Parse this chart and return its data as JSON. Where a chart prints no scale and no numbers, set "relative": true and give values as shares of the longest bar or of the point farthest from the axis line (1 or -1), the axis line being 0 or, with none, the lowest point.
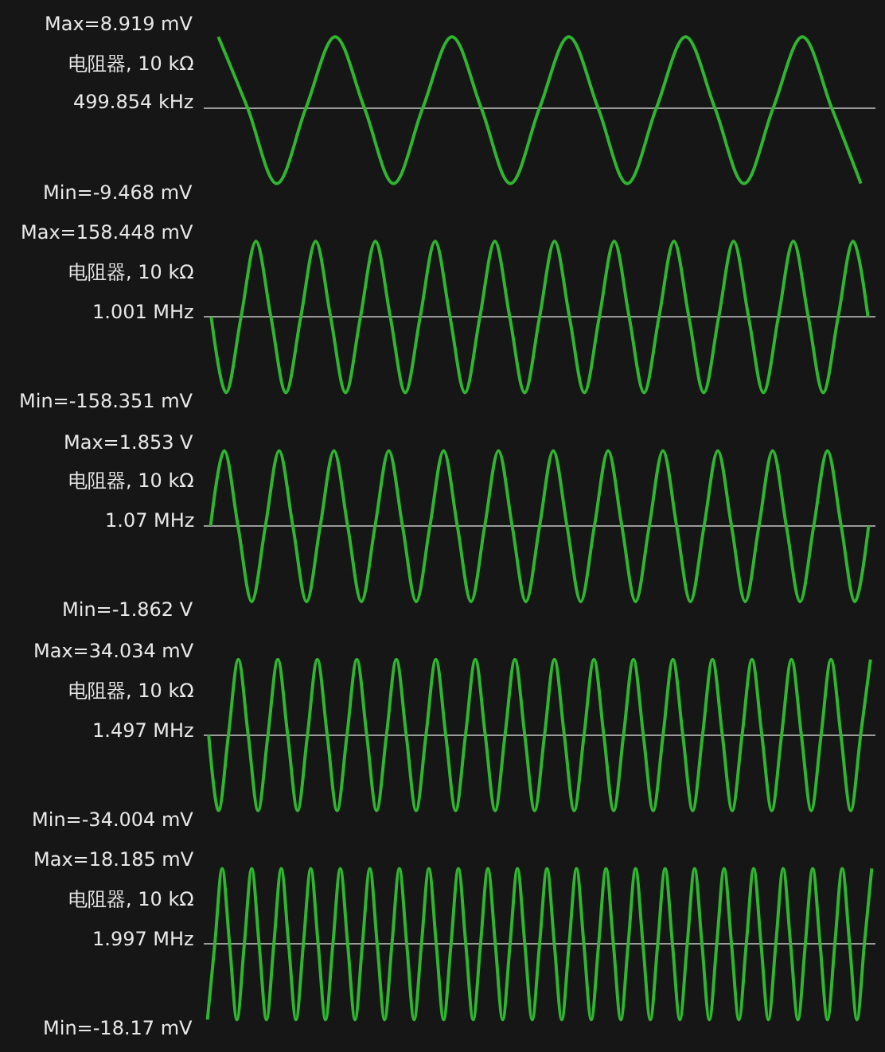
{
  "chart_data": [
    {
      "type": "line",
      "relative": true,
      "annotations": [
        "Max=8.919 mV",
        "电阻器, 10 kΩ",
        "499.854 kHz",
        "Min=-9.468 mV"
      ],
      "categories": [
        null,
        null,
        null,
        null,
        null,
        null,
        null,
        null,
        null,
        null,
        null,
        null,
        null,
        null,
        null,
        null,
        null,
        null,
        null,
        null,
        null,
        null,
        null
      ],
      "series": [
        {
          "color": "#2fb52f",
          "values": [
            0.94,
            0,
            -1,
            0,
            0.94,
            0,
            -1,
            0,
            0.94,
            0,
            -1,
            0,
            0.94,
            0,
            -1,
            0,
            0.94,
            0,
            -1,
            0,
            0.94,
            0,
            -1
          ]
        }
      ]
    },
    {
      "type": "line",
      "relative": true,
      "annotations": [
        "Max=158.448 mV",
        "电阻器, 10 kΩ",
        "1.001 MHz",
        "Min=-158.351 mV"
      ],
      "categories": [
        null,
        null,
        null,
        null,
        null,
        null,
        null,
        null,
        null,
        null,
        null,
        null,
        null,
        null,
        null,
        null,
        null,
        null,
        null,
        null,
        null,
        null,
        null,
        null,
        null,
        null,
        null,
        null,
        null,
        null,
        null,
        null,
        null,
        null,
        null,
        null,
        null,
        null,
        null,
        null,
        null,
        null,
        null,
        null,
        null
      ],
      "series": [
        {
          "color": "#2fb52f",
          "values": [
            0,
            -1,
            0,
            1,
            0,
            -1,
            0,
            1,
            0,
            -1,
            0,
            1,
            0,
            -1,
            0,
            1,
            0,
            -1,
            0,
            1,
            0,
            -1,
            0,
            1,
            0,
            -1,
            0,
            1,
            0,
            -1,
            0,
            1,
            0,
            -1,
            0,
            1,
            0,
            -1,
            0,
            1,
            0,
            -1,
            0,
            1,
            0
          ]
        }
      ]
    },
    {
      "type": "line",
      "relative": true,
      "annotations": [
        "Max=1.853 V",
        "电阻器, 10 kΩ",
        "1.07 MHz",
        "Min=-1.862 V"
      ],
      "categories": [
        null,
        null,
        null,
        null,
        null,
        null,
        null,
        null,
        null,
        null,
        null,
        null,
        null,
        null,
        null,
        null,
        null,
        null,
        null,
        null,
        null,
        null,
        null,
        null,
        null,
        null,
        null,
        null,
        null,
        null,
        null,
        null,
        null,
        null,
        null,
        null,
        null,
        null,
        null,
        null,
        null,
        null,
        null,
        null,
        null,
        null,
        null,
        null,
        null
      ],
      "series": [
        {
          "color": "#2fb52f",
          "values": [
            0,
            0.995,
            0,
            -1,
            0,
            0.995,
            0,
            -1,
            0,
            0.995,
            0,
            -1,
            0,
            0.995,
            0,
            -1,
            0,
            0.995,
            0,
            -1,
            0,
            0.995,
            0,
            -1,
            0,
            0.995,
            0,
            -1,
            0,
            0.995,
            0,
            -1,
            0,
            0.995,
            0,
            -1,
            0,
            0.995,
            0,
            -1,
            0,
            0.995,
            0,
            -1,
            0,
            0.995,
            0,
            -1,
            0
          ]
        }
      ]
    },
    {
      "type": "line",
      "relative": true,
      "annotations": [
        "Max=34.034 mV",
        "电阻器, 10 kΩ",
        "1.497 MHz",
        "Min=-34.004 mV"
      ],
      "categories": [
        null,
        null,
        null,
        null,
        null,
        null,
        null,
        null,
        null,
        null,
        null,
        null,
        null,
        null,
        null,
        null,
        null,
        null,
        null,
        null,
        null,
        null,
        null,
        null,
        null,
        null,
        null,
        null,
        null,
        null,
        null,
        null,
        null,
        null,
        null,
        null,
        null,
        null,
        null,
        null,
        null,
        null,
        null,
        null,
        null,
        null,
        null,
        null,
        null,
        null,
        null,
        null,
        null,
        null,
        null,
        null,
        null,
        null,
        null,
        null,
        null,
        null,
        null,
        null,
        null,
        null,
        null,
        null
      ],
      "series": [
        {
          "color": "#2fb52f",
          "values": [
            0,
            -0.999,
            0,
            1,
            0,
            -0.999,
            0,
            1,
            0,
            -0.999,
            0,
            1,
            0,
            -0.999,
            0,
            1,
            0,
            -0.999,
            0,
            1,
            0,
            -0.999,
            0,
            1,
            0,
            -0.999,
            0,
            1,
            0,
            -0.999,
            0,
            1,
            0,
            -0.999,
            0,
            1,
            0,
            -0.999,
            0,
            1,
            0,
            -0.999,
            0,
            1,
            0,
            -0.999,
            0,
            1,
            0,
            -0.999,
            0,
            1,
            0,
            -0.999,
            0,
            1,
            0,
            -0.999,
            0,
            1,
            0,
            -0.999,
            0,
            1,
            0,
            -0.999,
            0,
            1
          ]
        }
      ]
    },
    {
      "type": "line",
      "relative": true,
      "annotations": [
        "Max=18.185 mV",
        "电阻器, 10 kΩ",
        "1.997 MHz",
        "Min=-18.17 mV"
      ],
      "categories": [
        null,
        null,
        null,
        null,
        null,
        null,
        null,
        null,
        null,
        null,
        null,
        null,
        null,
        null,
        null,
        null,
        null,
        null,
        null,
        null,
        null,
        null,
        null,
        null,
        null,
        null,
        null,
        null,
        null,
        null,
        null,
        null,
        null,
        null,
        null,
        null,
        null,
        null,
        null,
        null,
        null,
        null,
        null,
        null,
        null,
        null,
        null,
        null,
        null,
        null,
        null,
        null,
        null,
        null,
        null,
        null,
        null,
        null,
        null,
        null,
        null,
        null,
        null,
        null,
        null,
        null,
        null,
        null,
        null,
        null,
        null,
        null,
        null,
        null,
        null,
        null,
        null,
        null,
        null,
        null,
        null,
        null,
        null,
        null,
        null,
        null,
        null,
        null,
        null,
        null,
        null
      ],
      "series": [
        {
          "color": "#2fb52f",
          "values": [
            -0.999,
            0,
            1,
            0,
            -0.999,
            0,
            1,
            0,
            -0.999,
            0,
            1,
            0,
            -0.999,
            0,
            1,
            0,
            -0.999,
            0,
            1,
            0,
            -0.999,
            0,
            1,
            0,
            -0.999,
            0,
            1,
            0,
            -0.999,
            0,
            1,
            0,
            -0.999,
            0,
            1,
            0,
            -0.999,
            0,
            1,
            0,
            -0.999,
            0,
            1,
            0,
            -0.999,
            0,
            1,
            0,
            -0.999,
            0,
            1,
            0,
            -0.999,
            0,
            1,
            0,
            -0.999,
            0,
            1,
            0,
            -0.999,
            0,
            1,
            0,
            -0.999,
            0,
            1,
            0,
            -0.999,
            0,
            1,
            0,
            -0.999,
            0,
            1,
            0,
            -0.999,
            0,
            1,
            0,
            -0.999,
            0,
            1,
            0,
            -0.999,
            0,
            1,
            0,
            -0.999,
            0,
            1
          ]
        }
      ]
    }
  ]
}
